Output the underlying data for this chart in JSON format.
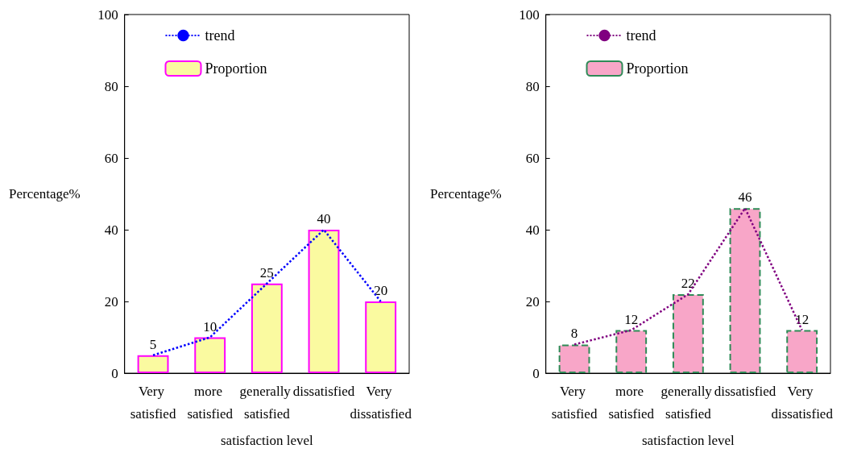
{
  "chart_data": [
    {
      "type": "bar",
      "categories": [
        "Very satisfied",
        "more satisfied",
        "generally satisfied",
        "dissatisfied",
        "Very dissatisfied"
      ],
      "xlabel": "satisfaction level",
      "ylabel": "Percentage%",
      "ylim": [
        0,
        100
      ],
      "yticks": [
        0,
        20,
        40,
        60,
        80,
        100
      ],
      "grid": false,
      "legend": "top",
      "series": [
        {
          "name": "trend",
          "type": "line",
          "color": "#0000ff",
          "line_style": "dotted",
          "marker": "none",
          "values": [
            5,
            10,
            25,
            40,
            20
          ]
        },
        {
          "name": "Proportion",
          "type": "bar",
          "color": "#fafaa0",
          "values": [
            5,
            10,
            25,
            40,
            20
          ],
          "value_labels": [
            "5",
            "10",
            "25",
            "40",
            "20"
          ]
        }
      ]
    },
    {
      "type": "bar",
      "categories": [
        "Very satisfied",
        "more satisfied",
        "generally satisfied",
        "dissatisfied",
        "Very dissatisfied"
      ],
      "xlabel": "satisfaction level",
      "ylabel": "Percentage%",
      "ylim": [
        0,
        100
      ],
      "yticks": [
        0,
        20,
        40,
        60,
        80,
        100
      ],
      "grid": false,
      "legend": "top",
      "series": [
        {
          "name": "trend",
          "type": "line",
          "color": "#800080",
          "line_style": "dotted",
          "marker": "none",
          "values": [
            8,
            12,
            22,
            46,
            12
          ]
        },
        {
          "name": "Proportion",
          "type": "bar",
          "color": "#f8a6c8",
          "values": [
            8,
            12,
            22,
            46,
            12
          ],
          "value_labels": [
            "8",
            "12",
            "22",
            "46",
            "12"
          ]
        }
      ]
    }
  ]
}
